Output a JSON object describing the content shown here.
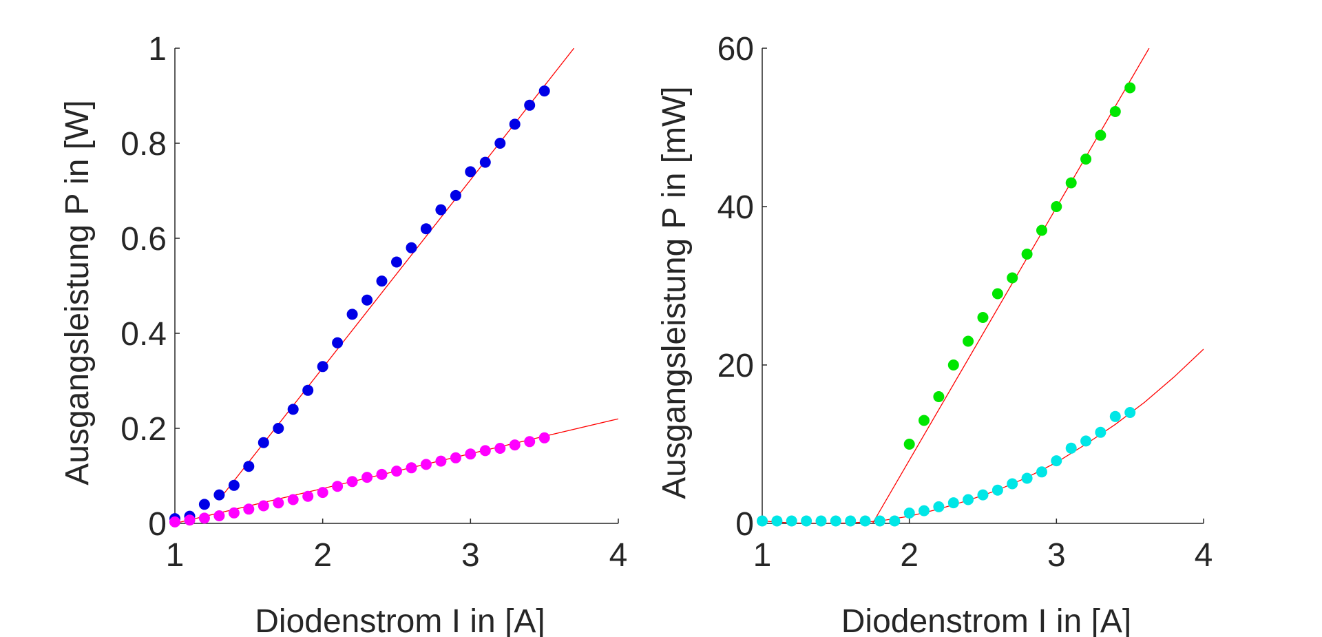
{
  "chart_data": [
    {
      "type": "scatter",
      "title": "",
      "xlabel": "Diodenstrom I in [A]",
      "ylabel": "Ausgangsleistung P in [W]",
      "xlim": [
        1,
        4
      ],
      "ylim": [
        0,
        1
      ],
      "x_ticks": [
        "1",
        "2",
        "3",
        "4"
      ],
      "y_ticks": [
        "0",
        "0.2",
        "0.4",
        "0.6",
        "0.8",
        "1"
      ],
      "grid": false,
      "legend": "none",
      "series": [
        {
          "color": "#0000e6",
          "marker": "filled-circle",
          "x": [
            1.0,
            1.1,
            1.2,
            1.3,
            1.4,
            1.5,
            1.6,
            1.7,
            1.8,
            1.9,
            2.0,
            2.1,
            2.2,
            2.3,
            2.4,
            2.5,
            2.6,
            2.7,
            2.8,
            2.9,
            3.0,
            3.1,
            3.2,
            3.3,
            3.4,
            3.5
          ],
          "y": [
            0.01,
            0.015,
            0.04,
            0.06,
            0.08,
            0.12,
            0.17,
            0.2,
            0.24,
            0.28,
            0.33,
            0.38,
            0.44,
            0.47,
            0.51,
            0.55,
            0.58,
            0.62,
            0.66,
            0.69,
            0.74,
            0.76,
            0.8,
            0.84,
            0.88,
            0.91
          ]
        },
        {
          "color": "#ff00ff",
          "marker": "filled-circle",
          "x": [
            1.0,
            1.1,
            1.2,
            1.3,
            1.4,
            1.5,
            1.6,
            1.7,
            1.8,
            1.9,
            2.0,
            2.1,
            2.2,
            2.3,
            2.4,
            2.5,
            2.6,
            2.7,
            2.8,
            2.9,
            3.0,
            3.1,
            3.2,
            3.3,
            3.4,
            3.5
          ],
          "y": [
            0.003,
            0.007,
            0.011,
            0.016,
            0.022,
            0.03,
            0.037,
            0.043,
            0.05,
            0.057,
            0.065,
            0.078,
            0.088,
            0.097,
            0.103,
            0.11,
            0.117,
            0.124,
            0.131,
            0.138,
            0.146,
            0.153,
            0.158,
            0.165,
            0.172,
            0.18
          ]
        }
      ],
      "fits": [
        {
          "color": "#ff0000",
          "x": [
            1.3,
            3.7
          ],
          "y": [
            0.05,
            1.0
          ]
        },
        {
          "color": "#ff0000",
          "x": [
            1.0,
            4.0
          ],
          "y": [
            0.0,
            0.22
          ]
        }
      ]
    },
    {
      "type": "scatter",
      "title": "",
      "xlabel": "Diodenstrom I in [A]",
      "ylabel": "Ausgangsleistung P in [mW]",
      "xlim": [
        1,
        4
      ],
      "ylim": [
        0,
        60
      ],
      "x_ticks": [
        "1",
        "2",
        "3",
        "4"
      ],
      "y_ticks": [
        "0",
        "20",
        "40",
        "60"
      ],
      "grid": false,
      "legend": "none",
      "series": [
        {
          "color": "#00e600",
          "marker": "filled-circle",
          "x": [
            2.0,
            2.1,
            2.2,
            2.3,
            2.4,
            2.5,
            2.6,
            2.7,
            2.8,
            2.9,
            3.0,
            3.1,
            3.2,
            3.3,
            3.4,
            3.5
          ],
          "y": [
            10,
            13,
            16,
            20,
            23,
            26,
            29,
            31,
            34,
            37,
            40,
            43,
            46,
            49,
            52,
            55
          ]
        },
        {
          "color": "#00e6e6",
          "marker": "filled-circle",
          "x": [
            1.0,
            1.1,
            1.2,
            1.3,
            1.4,
            1.5,
            1.6,
            1.7,
            1.8,
            1.9,
            2.0,
            2.1,
            2.2,
            2.3,
            2.4,
            2.5,
            2.6,
            2.7,
            2.8,
            2.9,
            3.0,
            3.1,
            3.2,
            3.3,
            3.4,
            3.5
          ],
          "y": [
            0.3,
            0.3,
            0.3,
            0.3,
            0.3,
            0.3,
            0.3,
            0.3,
            0.3,
            0.3,
            1.3,
            1.6,
            2.1,
            2.6,
            3.0,
            3.6,
            4.2,
            5.0,
            5.7,
            6.5,
            7.9,
            9.5,
            10.4,
            11.5,
            13.5,
            14.0
          ]
        }
      ],
      "fits": [
        {
          "color": "#ff0000",
          "x": [
            1.75,
            3.63
          ],
          "y": [
            0.0,
            60.0
          ]
        },
        {
          "color": "#ff0000",
          "x": [
            1.0,
            1.2,
            1.4,
            1.6,
            1.8,
            2.0,
            2.2,
            2.4,
            2.6,
            2.8,
            3.0,
            3.2,
            3.4,
            3.6,
            3.8,
            4.0
          ],
          "y": [
            0.3,
            0.05,
            0.0,
            0.05,
            0.3,
            0.9,
            1.8,
            2.9,
            4.2,
            5.8,
            7.7,
            10.0,
            12.5,
            15.3,
            18.5,
            22.0
          ]
        }
      ]
    }
  ]
}
